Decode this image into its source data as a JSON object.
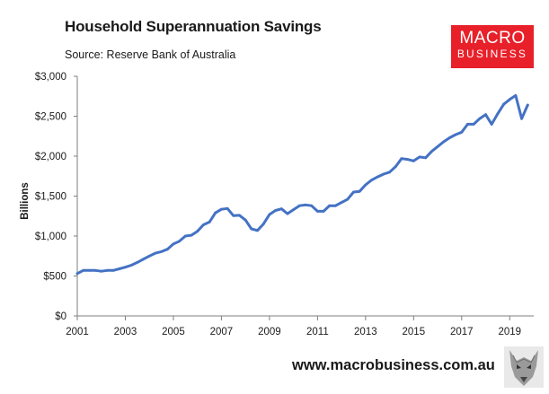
{
  "header": {
    "title": "Household Superannuation Savings",
    "source": "Source: Reserve Bank of Australia"
  },
  "logo": {
    "line1": "MACRO",
    "line2": "BUSINESS"
  },
  "footer": {
    "url": "www.macrobusiness.com.au",
    "mascot_icon": "wolf-icon"
  },
  "colors": {
    "series": "#4472c4",
    "logo_bg": "#e8202a",
    "axis": "#7f7f7f"
  },
  "chart_data": {
    "type": "line",
    "title": "Household Superannuation Savings",
    "xlabel": "",
    "ylabel": "Billions",
    "xlim": [
      2001,
      2020
    ],
    "ylim": [
      0,
      3000
    ],
    "y_ticks": [
      0,
      500,
      1000,
      1500,
      2000,
      2500,
      3000
    ],
    "y_tick_labels": [
      "$0",
      "$500",
      "$1,000",
      "$1,500",
      "$2,000",
      "$2,500",
      "$3,000"
    ],
    "x_ticks": [
      2001,
      2003,
      2005,
      2007,
      2009,
      2011,
      2013,
      2015,
      2017,
      2019
    ],
    "x_tick_labels": [
      "2001",
      "2003",
      "2005",
      "2007",
      "2009",
      "2011",
      "2013",
      "2015",
      "2017",
      "2019"
    ],
    "grid": false,
    "series": [
      {
        "name": "Household Superannuation Savings",
        "x": [
          2001.0,
          2001.25,
          2001.5,
          2001.75,
          2002.0,
          2002.25,
          2002.5,
          2002.75,
          2003.0,
          2003.25,
          2003.5,
          2003.75,
          2004.0,
          2004.25,
          2004.5,
          2004.75,
          2005.0,
          2005.25,
          2005.5,
          2005.75,
          2006.0,
          2006.25,
          2006.5,
          2006.75,
          2007.0,
          2007.25,
          2007.5,
          2007.75,
          2008.0,
          2008.25,
          2008.5,
          2008.75,
          2009.0,
          2009.25,
          2009.5,
          2009.75,
          2010.0,
          2010.25,
          2010.5,
          2010.75,
          2011.0,
          2011.25,
          2011.5,
          2011.75,
          2012.0,
          2012.25,
          2012.5,
          2012.75,
          2013.0,
          2013.25,
          2013.5,
          2013.75,
          2014.0,
          2014.25,
          2014.5,
          2014.75,
          2015.0,
          2015.25,
          2015.5,
          2015.75,
          2016.0,
          2016.25,
          2016.5,
          2016.75,
          2017.0,
          2017.25,
          2017.5,
          2017.75,
          2018.0,
          2018.25,
          2018.5,
          2018.75,
          2019.0,
          2019.25,
          2019.5,
          2019.75
        ],
        "values": [
          530,
          570,
          570,
          570,
          560,
          570,
          570,
          590,
          610,
          635,
          670,
          710,
          750,
          785,
          805,
          835,
          900,
          935,
          1000,
          1010,
          1060,
          1140,
          1175,
          1290,
          1335,
          1345,
          1255,
          1260,
          1200,
          1090,
          1070,
          1150,
          1270,
          1320,
          1340,
          1280,
          1330,
          1380,
          1390,
          1380,
          1310,
          1310,
          1380,
          1380,
          1420,
          1460,
          1550,
          1560,
          1640,
          1700,
          1740,
          1775,
          1800,
          1870,
          1970,
          1960,
          1940,
          1990,
          1980,
          2060,
          2120,
          2180,
          2230,
          2270,
          2300,
          2400,
          2400,
          2470,
          2520,
          2400,
          2530,
          2650,
          2710,
          2760,
          2470,
          2640
        ]
      }
    ]
  }
}
